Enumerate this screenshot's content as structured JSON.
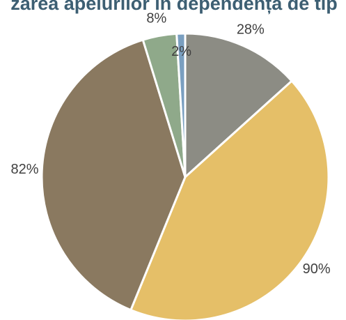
{
  "chart_data": {
    "type": "pie",
    "title": "zarea apelurilor în dependența de tip",
    "values": [
      28,
      90,
      82,
      8,
      2
    ],
    "value_labels": [
      "28%",
      "90%",
      "82%",
      "8%",
      "2%"
    ],
    "colors": [
      "#8c8c84",
      "#e5bf68",
      "#8a7960",
      "#8fa98a",
      "#7a9fc0"
    ]
  }
}
